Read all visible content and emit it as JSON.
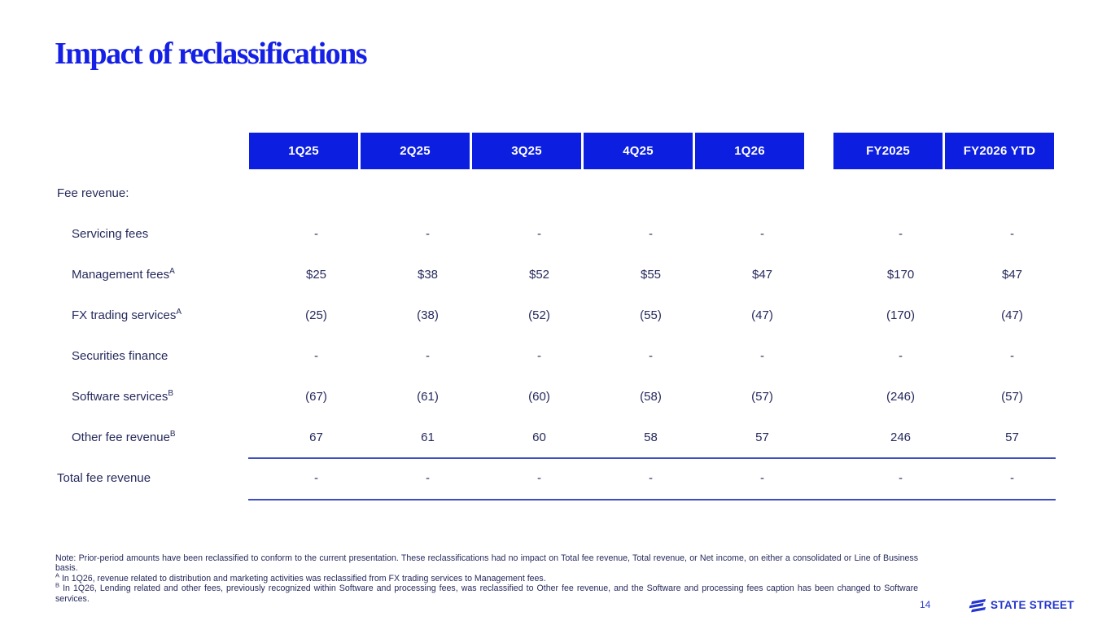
{
  "slide": {
    "title": "Impact of reclassifications",
    "page_number": "14",
    "logo_text": "STATE STREET"
  },
  "table": {
    "column_headers": [
      "1Q25",
      "2Q25",
      "3Q25",
      "4Q25",
      "1Q26",
      "FY2025",
      "FY2026 YTD"
    ],
    "rows": [
      {
        "label": "Fee revenue:",
        "sup": "",
        "indent": false,
        "total": false,
        "values": [
          "",
          "",
          "",
          "",
          "",
          "",
          ""
        ]
      },
      {
        "label": "Servicing fees",
        "sup": "",
        "indent": true,
        "total": false,
        "values": [
          "-",
          "-",
          "-",
          "-",
          "-",
          "-",
          "-"
        ]
      },
      {
        "label": "Management fees",
        "sup": "A",
        "indent": true,
        "total": false,
        "values": [
          "$25",
          "$38",
          "$52",
          "$55",
          "$47",
          "$170",
          "$47"
        ]
      },
      {
        "label": "FX trading services",
        "sup": "A",
        "indent": true,
        "total": false,
        "values": [
          "(25)",
          "(38)",
          "(52)",
          "(55)",
          "(47)",
          "(170)",
          "(47)"
        ]
      },
      {
        "label": "Securities finance",
        "sup": "",
        "indent": true,
        "total": false,
        "values": [
          "-",
          "-",
          "-",
          "-",
          "-",
          "-",
          "-"
        ]
      },
      {
        "label": "Software services",
        "sup": "B",
        "indent": true,
        "total": false,
        "values": [
          "(67)",
          "(61)",
          "(60)",
          "(58)",
          "(57)",
          "(246)",
          "(57)"
        ]
      },
      {
        "label": "Other fee revenue",
        "sup": "B",
        "indent": true,
        "total": false,
        "values": [
          "67",
          "61",
          "60",
          "58",
          "57",
          "246",
          "57"
        ]
      },
      {
        "label": "Total fee revenue",
        "sup": "",
        "indent": false,
        "total": true,
        "values": [
          "-",
          "-",
          "-",
          "-",
          "-",
          "-",
          "-"
        ]
      }
    ]
  },
  "footnotes": {
    "note": "Note: Prior-period amounts have been reclassified to conform to the current presentation. These reclassifications had no impact on Total fee revenue, Total revenue, or Net income, on either a consolidated or Line of Business basis.",
    "a_sup": "A",
    "a_text": " In 1Q26, revenue related to distribution and marketing activities was reclassified from FX trading services to Management fees.",
    "b_sup": "B",
    "b_text": " In 1Q26, Lending related and other fees, previously recognized within Software and processing fees, was reclassified to Other fee revenue, and the Software and processing fees caption has been changed to Software services."
  },
  "colors": {
    "header_blue": "#0C1EE0",
    "title_blue": "#1520E6",
    "text_navy": "#262A5C",
    "rule_blue": "#3D4EC0",
    "logo_blue": "#2336CE"
  }
}
